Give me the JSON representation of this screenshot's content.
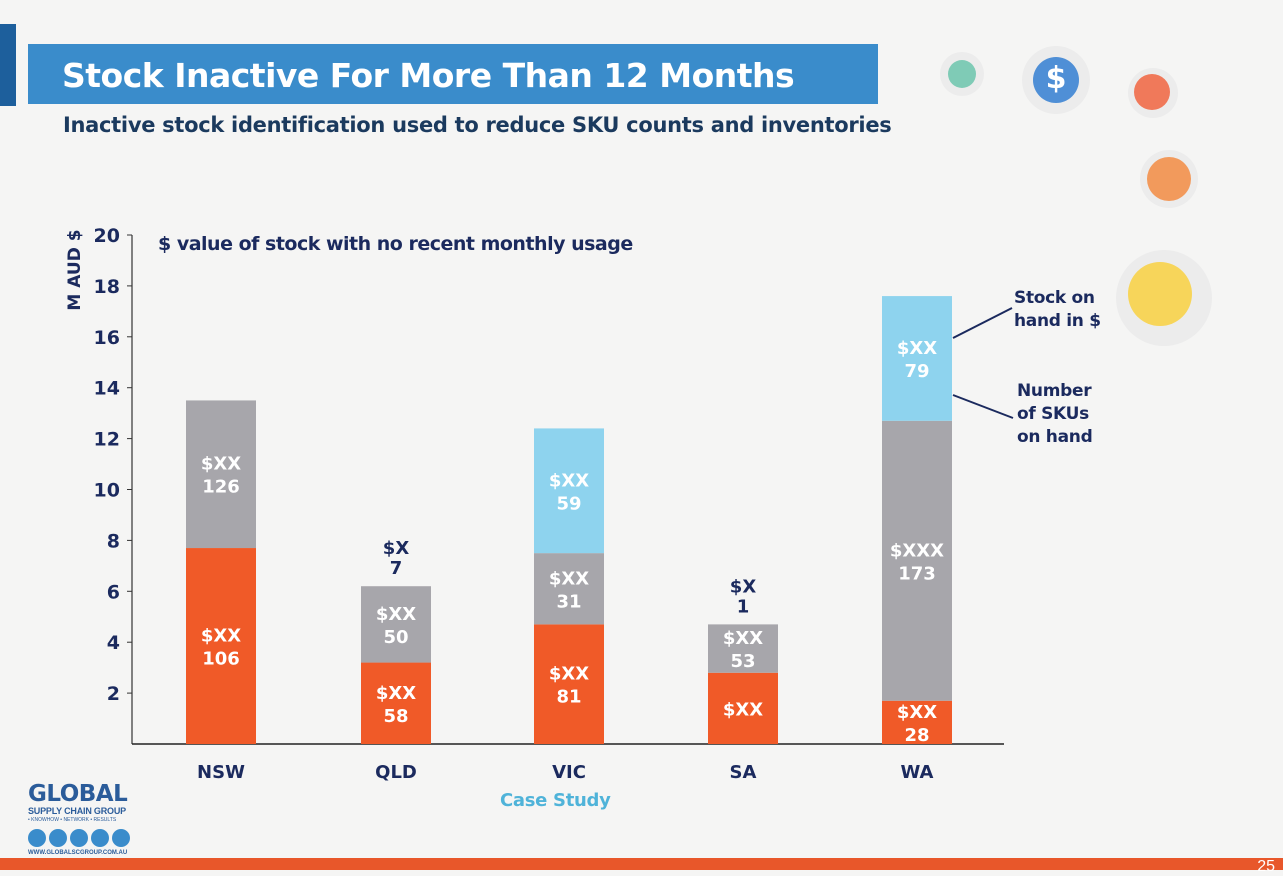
{
  "header": {
    "title": "Stock Inactive For More Than 12 Months",
    "subtitle": "Inactive stock identification used to reduce SKU counts and inventories"
  },
  "colors": {
    "title_band": "#3a8ccb",
    "orange": "#f05a28",
    "gray": "#a7a6ab",
    "light_blue": "#8ed3ee",
    "axis_text": "#1b2a5e",
    "bottom_bar": "#e8572a"
  },
  "chart_data": {
    "type": "bar",
    "stacked": true,
    "title": "$ value of stock with no recent monthly usage",
    "ylabel": "M AUD $",
    "xlabel": "",
    "ylim": [
      0,
      20
    ],
    "yticks": [
      2,
      4,
      6,
      8,
      10,
      12,
      14,
      16,
      18,
      20
    ],
    "categories": [
      "NSW",
      "QLD",
      "VIC",
      "SA",
      "WA"
    ],
    "grid": false,
    "series": [
      {
        "color": "#f05a28",
        "values": [
          7.7,
          3.2,
          4.7,
          2.8,
          1.7
        ],
        "labels": [
          [
            "$XX",
            "106"
          ],
          [
            "$XX",
            "58"
          ],
          [
            "$XX",
            "81"
          ],
          [
            "$XX"
          ],
          [
            "$XX",
            "28"
          ]
        ]
      },
      {
        "color": "#a7a6ab",
        "values": [
          5.8,
          3.0,
          2.8,
          1.9,
          11.0
        ],
        "labels": [
          [
            "$XX",
            "126"
          ],
          [
            "$XX",
            "50"
          ],
          [
            "$XX",
            "31"
          ],
          [
            "$XX",
            "53"
          ],
          [
            "$XXX",
            "173"
          ]
        ]
      },
      {
        "color": "#8ed3ee",
        "values": [
          0,
          0,
          4.9,
          0,
          4.9
        ],
        "labels": [
          [],
          [],
          [
            "$XX",
            "59"
          ],
          [],
          [
            "$XX",
            "79"
          ]
        ]
      }
    ],
    "top_labels": [
      [],
      [
        "$X",
        "7"
      ],
      [],
      [
        "$X",
        "1"
      ],
      []
    ],
    "annotations": [
      "Stock on\nhand in $",
      "Number\nof SKUs\non hand"
    ]
  },
  "footer": {
    "case_study": "Case Study",
    "page_number": "25",
    "logo": {
      "name": "GLOBAL",
      "subname": "SUPPLY CHAIN GROUP",
      "tagline": "• KNOWHOW • NETWORK • RESULTS",
      "url": "WWW.GLOBALSCGROUP.COM.AU"
    }
  },
  "deco_icons": {
    "dollar": "$"
  }
}
